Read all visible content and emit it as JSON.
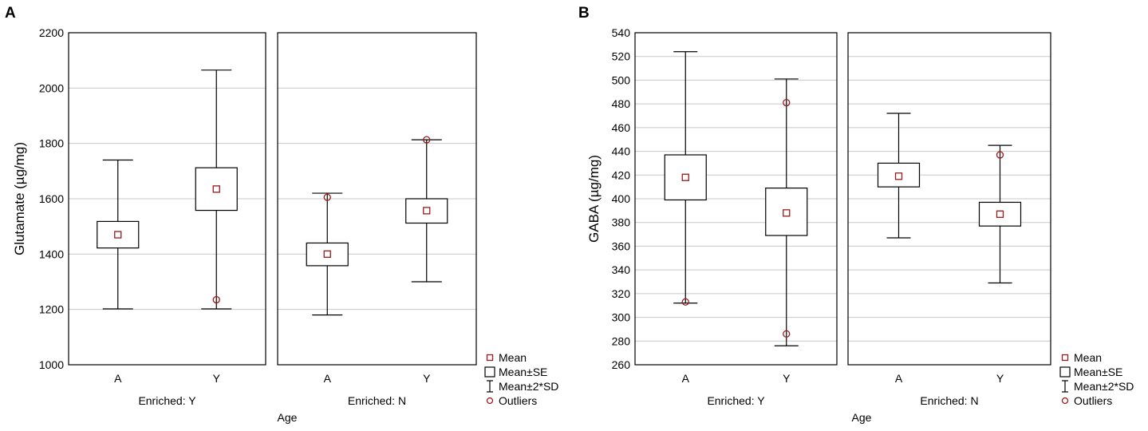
{
  "figure": {
    "colors": {
      "marker": "#9a1a1a",
      "grid": "#c8c8c8",
      "axis": "#000000"
    }
  },
  "chart_data": [
    {
      "type": "box",
      "panel_letter": "A",
      "ylabel": "Glutamate (µg/mg)",
      "xlabel": "Age",
      "ylim": [
        1000,
        2200
      ],
      "yticks": [
        1000,
        1200,
        1400,
        1600,
        1800,
        2000,
        2200
      ],
      "legend": {
        "position": "bottom-right",
        "entries": [
          "Mean",
          "Mean±SE",
          "Mean±2*SD",
          "Outliers"
        ]
      },
      "panels": [
        {
          "label": "Enriched: Y",
          "categories": [
            "A",
            "Y"
          ],
          "groups": [
            {
              "category": "A",
              "mean": 1470,
              "se_low": 1422,
              "se_high": 1518,
              "sd2_low": 1202,
              "sd2_high": 1740,
              "outliers": []
            },
            {
              "category": "Y",
              "mean": 1635,
              "se_low": 1558,
              "se_high": 1712,
              "sd2_low": 1202,
              "sd2_high": 2065,
              "outliers": [
                1235
              ]
            }
          ]
        },
        {
          "label": "Enriched: N",
          "categories": [
            "A",
            "Y"
          ],
          "groups": [
            {
              "category": "A",
              "mean": 1400,
              "se_low": 1358,
              "se_high": 1440,
              "sd2_low": 1180,
              "sd2_high": 1620,
              "outliers": [
                1605
              ]
            },
            {
              "category": "Y",
              "mean": 1557,
              "se_low": 1512,
              "se_high": 1600,
              "sd2_low": 1300,
              "sd2_high": 1813,
              "outliers": [
                1813
              ]
            }
          ]
        }
      ]
    },
    {
      "type": "box",
      "panel_letter": "B",
      "ylabel": "GABA (µg/mg)",
      "xlabel": "Age",
      "ylim": [
        260,
        540
      ],
      "yticks": [
        260,
        280,
        300,
        320,
        340,
        360,
        380,
        400,
        420,
        440,
        460,
        480,
        500,
        520,
        540
      ],
      "legend": {
        "position": "bottom-right",
        "entries": [
          "Mean",
          "Mean±SE",
          "Mean±2*SD",
          "Outliers"
        ]
      },
      "panels": [
        {
          "label": "Enriched: Y",
          "categories": [
            "A",
            "Y"
          ],
          "groups": [
            {
              "category": "A",
              "mean": 418,
              "se_low": 399,
              "se_high": 437,
              "sd2_low": 312,
              "sd2_high": 524,
              "outliers": [
                313
              ]
            },
            {
              "category": "Y",
              "mean": 388,
              "se_low": 369,
              "se_high": 409,
              "sd2_low": 276,
              "sd2_high": 501,
              "outliers": [
                481,
                286
              ]
            }
          ]
        },
        {
          "label": "Enriched: N",
          "categories": [
            "A",
            "Y"
          ],
          "groups": [
            {
              "category": "A",
              "mean": 419,
              "se_low": 410,
              "se_high": 430,
              "sd2_low": 367,
              "sd2_high": 472,
              "outliers": []
            },
            {
              "category": "Y",
              "mean": 387,
              "se_low": 377,
              "se_high": 397,
              "sd2_low": 329,
              "sd2_high": 445,
              "outliers": [
                437
              ]
            }
          ]
        }
      ]
    }
  ]
}
